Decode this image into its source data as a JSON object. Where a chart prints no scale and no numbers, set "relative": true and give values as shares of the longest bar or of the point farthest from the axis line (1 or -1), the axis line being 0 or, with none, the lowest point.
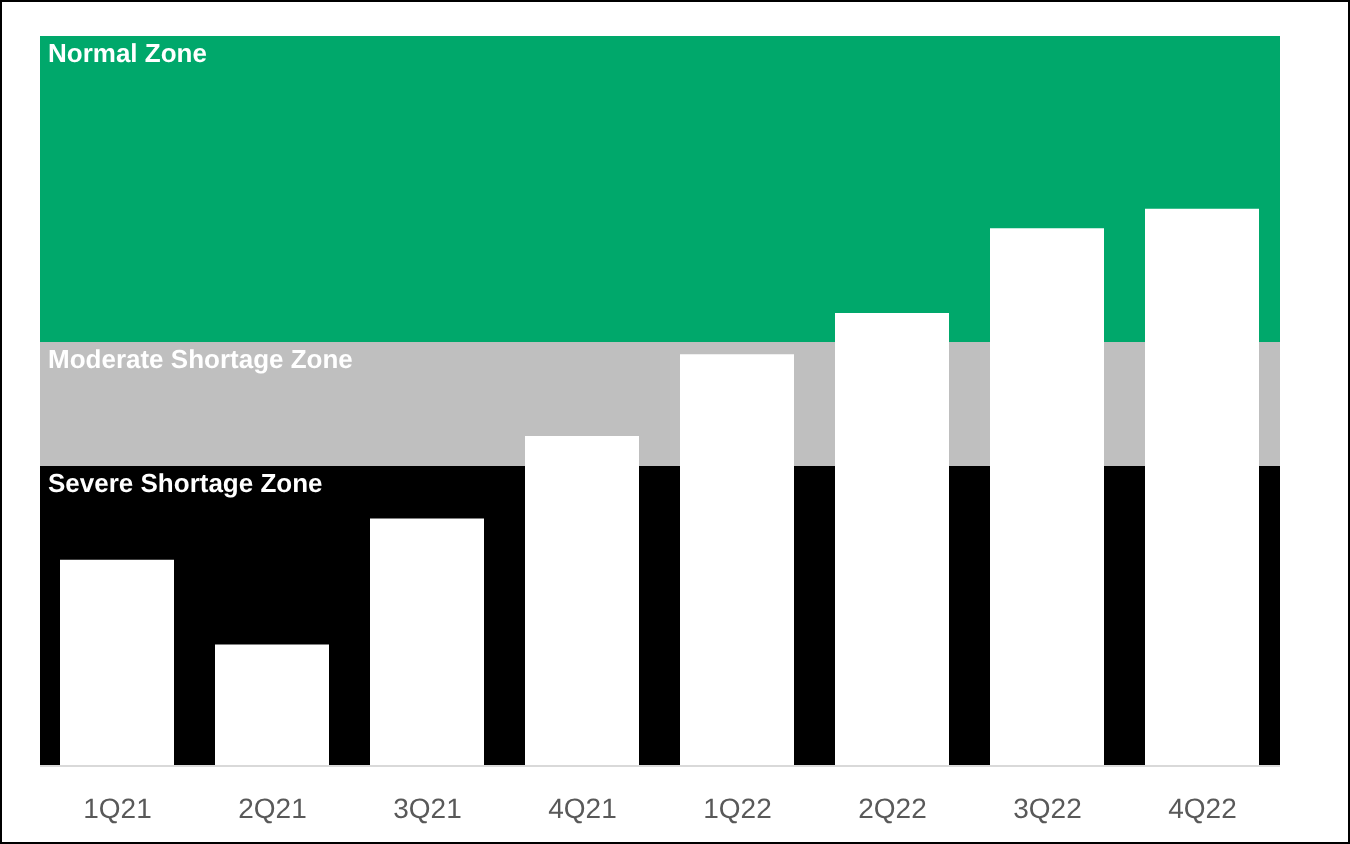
{
  "chart_data": {
    "type": "bar",
    "relative": true,
    "categories": [
      "1Q21",
      "2Q21",
      "3Q21",
      "4Q21",
      "1Q22",
      "2Q22",
      "3Q22",
      "4Q22"
    ],
    "values": [
      0.37,
      0.218,
      0.444,
      0.592,
      0.739,
      0.813,
      0.965,
      1
    ],
    "color": "#ffffff",
    "bands": [
      {
        "axis": "y",
        "from": 0,
        "to": 0.539,
        "label": "Severe Shortage Zone",
        "color": "#000000"
      },
      {
        "axis": "y",
        "from": 0.539,
        "to": 0.761,
        "label": "Moderate Shortage Zone",
        "color": "#bfbfbf"
      },
      {
        "axis": "y",
        "from": 0.761,
        "to": 1.31,
        "label": "Normal Zone",
        "color": "#00a86b"
      }
    ],
    "grid": false,
    "legend": false
  }
}
